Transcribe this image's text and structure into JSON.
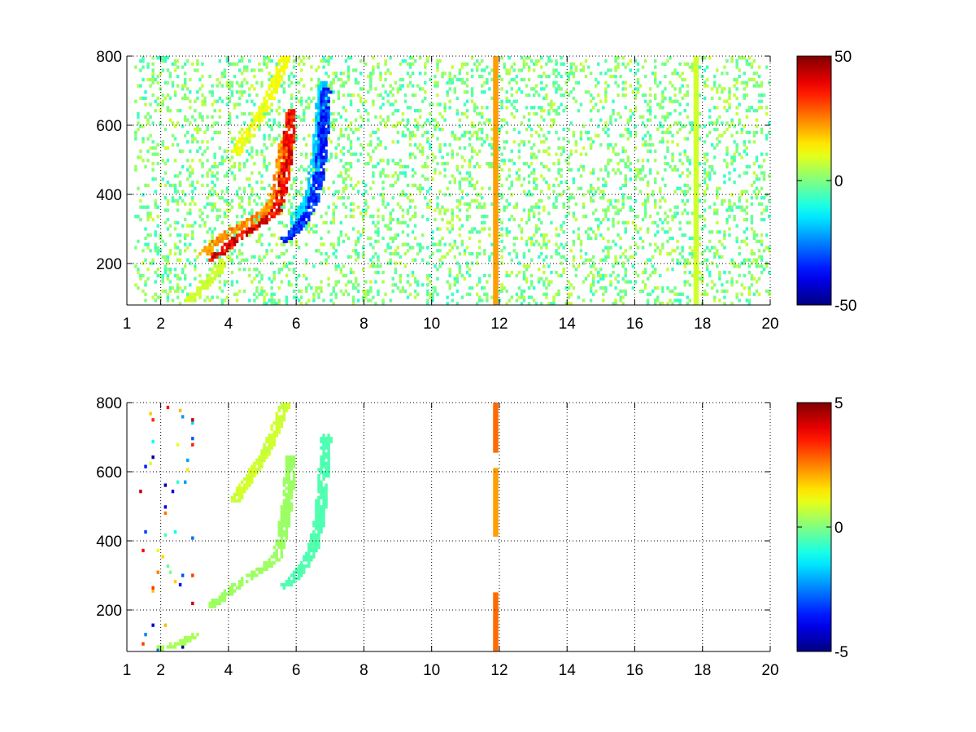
{
  "chart_data": [
    {
      "type": "heatmap",
      "panel": "top",
      "title": "",
      "xlabel": "",
      "ylabel": "",
      "xlim": [
        1,
        20
      ],
      "ylim": [
        80,
        800
      ],
      "x_ticks": [
        1,
        2,
        4,
        6,
        8,
        10,
        12,
        14,
        16,
        18,
        20
      ],
      "x_tick_labels": [
        "1",
        "2",
        "4",
        "6",
        "8",
        "10",
        "12",
        "14",
        "16",
        "18",
        "20"
      ],
      "y_ticks": [
        200,
        400,
        600,
        800
      ],
      "y_tick_labels": [
        "200",
        "400",
        "600",
        "800"
      ],
      "grid": true,
      "colormap": "jet",
      "clim": [
        -50,
        50
      ],
      "colorbar_ticks": [
        50,
        0,
        -50
      ],
      "colorbar_tick_labels": [
        "50",
        "0",
        "-50"
      ],
      "features": [
        {
          "kind": "curve",
          "value": 40,
          "points": [
            [
              3.5,
              215
            ],
            [
              3.8,
              235
            ],
            [
              4.1,
              260
            ],
            [
              4.5,
              290
            ],
            [
              5.0,
              320
            ],
            [
              5.4,
              350
            ],
            [
              5.6,
              420
            ],
            [
              5.75,
              520
            ],
            [
              5.85,
              640
            ]
          ]
        },
        {
          "kind": "curve",
          "value": 25,
          "points": [
            [
              3.3,
              230
            ],
            [
              3.6,
              260
            ],
            [
              4.0,
              290
            ],
            [
              4.6,
              320
            ],
            [
              5.0,
              345
            ],
            [
              5.3,
              380
            ],
            [
              5.5,
              450
            ],
            [
              5.65,
              550
            ]
          ]
        },
        {
          "kind": "curve",
          "value": 8,
          "points": [
            [
              2.8,
              95
            ],
            [
              3.0,
              110
            ],
            [
              3.3,
              135
            ],
            [
              3.6,
              170
            ],
            [
              3.9,
              210
            ]
          ]
        },
        {
          "kind": "curve",
          "value": 12,
          "points": [
            [
              4.2,
              520
            ],
            [
              4.6,
              580
            ],
            [
              5.0,
              640
            ],
            [
              5.3,
              700
            ],
            [
              5.55,
              760
            ],
            [
              5.7,
              800
            ]
          ]
        },
        {
          "kind": "curve",
          "value": -35,
          "points": [
            [
              5.7,
              270
            ],
            [
              6.0,
              300
            ],
            [
              6.3,
              340
            ],
            [
              6.5,
              380
            ],
            [
              6.65,
              440
            ],
            [
              6.75,
              520
            ],
            [
              6.82,
              610
            ],
            [
              6.88,
              700
            ]
          ]
        },
        {
          "kind": "curve",
          "value": -18,
          "points": [
            [
              5.9,
              320
            ],
            [
              6.2,
              360
            ],
            [
              6.45,
              420
            ],
            [
              6.6,
              500
            ],
            [
              6.7,
              600
            ],
            [
              6.8,
              720
            ]
          ]
        },
        {
          "kind": "vline",
          "x": 11.9,
          "y0": 80,
          "y1": 800,
          "value": 22
        },
        {
          "kind": "vline",
          "x": 17.8,
          "y0": 80,
          "y1": 800,
          "value": 8
        }
      ],
      "noise": {
        "x_range": [
          1.2,
          20
        ],
        "density": 0.2,
        "value_range": [
          -8,
          8
        ]
      }
    },
    {
      "type": "heatmap",
      "panel": "bottom",
      "title": "",
      "xlabel": "",
      "ylabel": "",
      "xlim": [
        1,
        20
      ],
      "ylim": [
        80,
        800
      ],
      "x_ticks": [
        1,
        2,
        4,
        6,
        8,
        10,
        12,
        14,
        16,
        18,
        20
      ],
      "x_tick_labels": [
        "1",
        "2",
        "4",
        "6",
        "8",
        "10",
        "12",
        "14",
        "16",
        "18",
        "20"
      ],
      "y_ticks": [
        200,
        400,
        600,
        800
      ],
      "y_tick_labels": [
        "200",
        "400",
        "600",
        "800"
      ],
      "grid": true,
      "colormap": "jet",
      "clim": [
        -5,
        5
      ],
      "colorbar_ticks": [
        5,
        0,
        -5
      ],
      "colorbar_tick_labels": [
        "5",
        "0",
        "-5"
      ],
      "features": [
        {
          "kind": "curve",
          "value": 0.3,
          "points": [
            [
              3.5,
              215
            ],
            [
              3.8,
              235
            ],
            [
              4.1,
              260
            ],
            [
              4.5,
              290
            ],
            [
              5.0,
              320
            ],
            [
              5.4,
              350
            ],
            [
              5.6,
              420
            ],
            [
              5.75,
              520
            ],
            [
              5.85,
              640
            ]
          ]
        },
        {
          "kind": "curve",
          "value": 0.8,
          "points": [
            [
              4.2,
              520
            ],
            [
              4.6,
              580
            ],
            [
              5.0,
              640
            ],
            [
              5.3,
              700
            ],
            [
              5.55,
              760
            ],
            [
              5.7,
              800
            ]
          ]
        },
        {
          "kind": "curve",
          "value": -0.5,
          "points": [
            [
              5.7,
              270
            ],
            [
              6.0,
              300
            ],
            [
              6.3,
              340
            ],
            [
              6.5,
              380
            ],
            [
              6.65,
              440
            ],
            [
              6.75,
              520
            ],
            [
              6.82,
              610
            ],
            [
              6.88,
              700
            ]
          ]
        },
        {
          "kind": "curve",
          "value": 0.4,
          "points": [
            [
              2.0,
              90
            ],
            [
              2.3,
              95
            ],
            [
              2.7,
              110
            ],
            [
              3.0,
              125
            ]
          ]
        },
        {
          "kind": "vline",
          "x": 11.9,
          "y0": 660,
          "y1": 800,
          "value": 2.7
        },
        {
          "kind": "vline",
          "x": 11.9,
          "y0": 410,
          "y1": 610,
          "value": 2.2
        },
        {
          "kind": "vline",
          "x": 11.9,
          "y0": 80,
          "y1": 250,
          "value": 2.7
        }
      ],
      "noise": {
        "x_range": [
          1.4,
          3.0
        ],
        "density": 0.03,
        "value_range": [
          -5,
          5
        ]
      }
    }
  ]
}
